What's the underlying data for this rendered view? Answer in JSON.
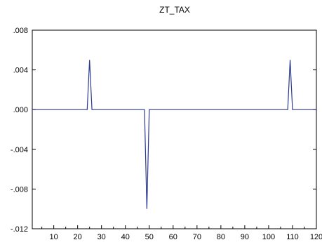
{
  "chart_data": {
    "type": "line",
    "title": "ZT_TAX",
    "xlabel": "",
    "ylabel": "",
    "xlim": [
      1,
      120
    ],
    "ylim": [
      -0.012,
      0.008
    ],
    "x_ticks": [
      10,
      20,
      30,
      40,
      50,
      60,
      70,
      80,
      90,
      100,
      110,
      120
    ],
    "x_tick_labels": [
      "10",
      "20",
      "30",
      "40",
      "50",
      "60",
      "70",
      "80",
      "90",
      "100",
      "110",
      "120"
    ],
    "y_ticks": [
      0.008,
      0.004,
      0.0,
      -0.004,
      -0.008,
      -0.012
    ],
    "y_tick_labels": [
      ".008",
      ".004",
      ".000",
      "-.004",
      "-.008",
      "-.012"
    ],
    "grid": false,
    "legend": "none",
    "series": [
      {
        "color": "#2b3a8f",
        "points": [
          [
            1,
            0.0
          ],
          [
            24,
            0.0
          ],
          [
            25,
            0.005
          ],
          [
            26,
            0.0
          ],
          [
            48,
            0.0
          ],
          [
            49,
            -0.01
          ],
          [
            50,
            0.0
          ],
          [
            108,
            0.0
          ],
          [
            109,
            0.005
          ],
          [
            110,
            0.0
          ],
          [
            120,
            0.0
          ]
        ]
      }
    ]
  }
}
